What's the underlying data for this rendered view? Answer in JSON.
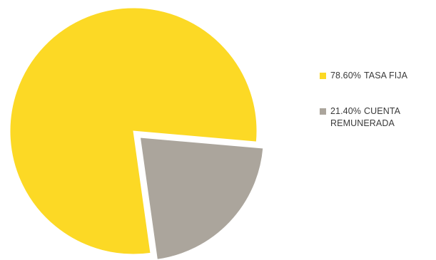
{
  "chart_data": {
    "type": "pie",
    "title": "",
    "slices": [
      {
        "label": "TASA FIJA",
        "value": 78.6,
        "display_value": "78.60%",
        "color": "#FCD925"
      },
      {
        "label": "CUENTA REMUNERADA",
        "value": 21.4,
        "display_value": "21.40%",
        "color": "#ABA59C"
      }
    ],
    "exploded": "CUENTA REMUNERADA",
    "legend_position": "right"
  }
}
